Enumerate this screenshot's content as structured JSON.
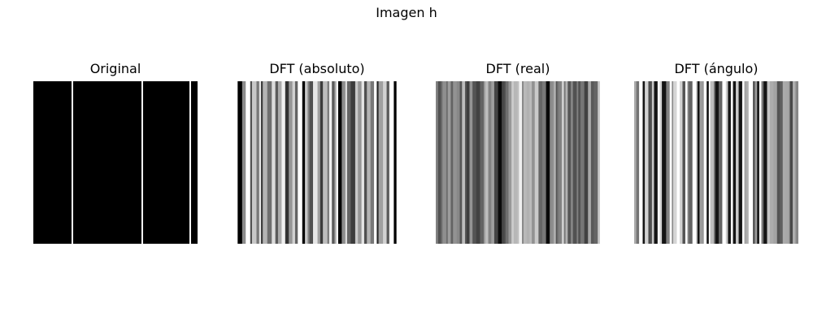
{
  "figure": {
    "suptitle": "Imagen h"
  },
  "panels": [
    {
      "title": "Original"
    },
    {
      "title": "DFT (absoluto)"
    },
    {
      "title": "DFT (real)"
    },
    {
      "title": "DFT (ángulo)"
    }
  ]
}
